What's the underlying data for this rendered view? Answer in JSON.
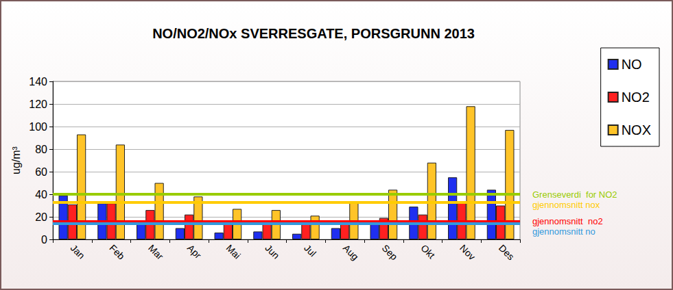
{
  "chart_data": {
    "type": "bar",
    "title": "NO/NO2/NOx SVERRESGATE, PORSGRUNN 2013",
    "y_label": "ug/m³",
    "categories": [
      "Jan",
      "Feb",
      "Mar",
      "Apr",
      "Mai",
      "Jun",
      "Jul",
      "Aug",
      "Sep",
      "Okt",
      "Nov",
      "Des"
    ],
    "series": [
      {
        "name": "NO",
        "color": "#1f2ff0",
        "values": [
          39,
          32,
          16,
          10,
          6,
          7,
          5,
          10,
          16,
          29,
          55,
          44
        ]
      },
      {
        "name": "NO2",
        "color": "#ff2020",
        "values": [
          31,
          32,
          26,
          22,
          16,
          15,
          14,
          16,
          19,
          22,
          33,
          30
        ]
      },
      {
        "name": "NOX",
        "color": "#ffc428",
        "values": [
          93,
          84,
          50,
          38,
          27,
          26,
          21,
          33,
          44,
          68,
          118,
          97
        ]
      }
    ],
    "annotations": [
      {
        "text": "Grenseverdi  for NO2",
        "y": 40,
        "color": "#99cc00"
      },
      {
        "text": "gjennomsnitt nox",
        "y": 33,
        "color": "#ffcc00"
      },
      {
        "text": "gjennomsnitt  no2",
        "y": 16,
        "color": "#ff0000"
      },
      {
        "text": "gjennomsnitt no",
        "y": 14,
        "color": "#3399dd"
      }
    ],
    "ylim": [
      0,
      140
    ],
    "yticks": [
      0,
      20,
      40,
      60,
      80,
      100,
      120,
      140
    ],
    "grid": true,
    "legend": "right"
  }
}
